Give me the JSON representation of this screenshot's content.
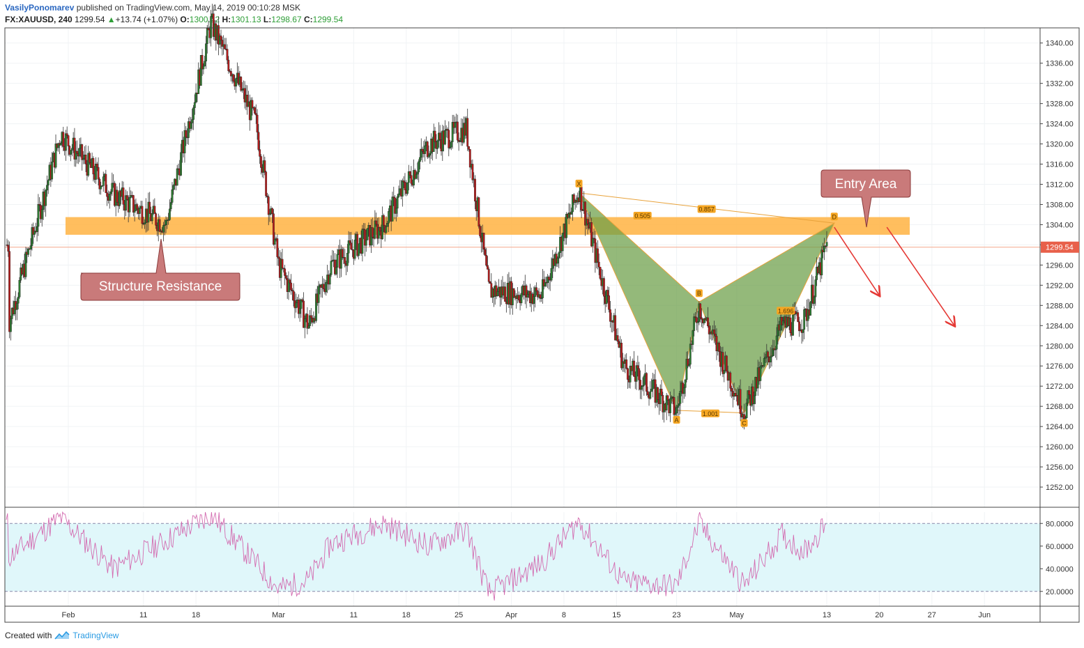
{
  "header": {
    "author": "VasilyPonomarev",
    "published_text": "published on TradingView.com, May 14, 2019 00:10:28 MSK",
    "symbol": "FX:XAUUSD, 240",
    "last": "1299.54",
    "change_arrow": "▲",
    "change": "+13.74 (+1.07%)",
    "open_label": "O:",
    "open": "1300.22",
    "high_label": "H:",
    "high": "1301.13",
    "low_label": "L:",
    "low": "1298.67",
    "close_label": "C:",
    "close": "1299.54"
  },
  "footer": {
    "created_with": "Created with",
    "brand": "TradingView",
    "logo_icon": "tradingview-logo-icon"
  },
  "colors": {
    "up": "#2e7d32",
    "down": "#b71c1c",
    "zone": "#ffb74d",
    "pattern": "#6b9e46",
    "rsi": "#d36bb0",
    "rsi_band": "#e0f7fa",
    "arrow": "#e53935",
    "label_box": "#c97a7a"
  },
  "chart_data": [
    {
      "type": "candlestick",
      "symbol": "FX:XAUUSD",
      "timeframe": "240",
      "ylim": [
        1248,
        1343
      ],
      "y_ticks": [
        "1340.00",
        "1336.00",
        "1332.00",
        "1328.00",
        "1324.00",
        "1320.00",
        "1316.00",
        "1312.00",
        "1308.00",
        "1304.00",
        "1300.00",
        "1296.00",
        "1292.00",
        "1288.00",
        "1284.00",
        "1280.00",
        "1276.00",
        "1272.00",
        "1268.00",
        "1264.00",
        "1260.00",
        "1256.00",
        "1252.00"
      ],
      "x_ticks": [
        "Feb",
        "11",
        "18",
        "Mar",
        "11",
        "18",
        "25",
        "Apr",
        "8",
        "15",
        "23",
        "May",
        "13",
        "20",
        "27",
        "Jun"
      ],
      "last_price_label": "1299.54",
      "anchors": [
        {
          "date": "2019-01-24",
          "price": 1284
        },
        {
          "date": "2019-01-31",
          "price": 1322
        },
        {
          "date": "2019-02-07",
          "price": 1310
        },
        {
          "date": "2019-02-14",
          "price": 1304
        },
        {
          "date": "2019-02-20",
          "price": 1344
        },
        {
          "date": "2019-02-26",
          "price": 1324
        },
        {
          "date": "2019-03-01",
          "price": 1296
        },
        {
          "date": "2019-03-05",
          "price": 1284
        },
        {
          "date": "2019-03-08",
          "price": 1296
        },
        {
          "date": "2019-03-15",
          "price": 1304
        },
        {
          "date": "2019-03-21",
          "price": 1320
        },
        {
          "date": "2019-03-26",
          "price": 1323
        },
        {
          "date": "2019-03-29",
          "price": 1291
        },
        {
          "date": "2019-04-05",
          "price": 1290
        },
        {
          "date": "2019-04-10",
          "price": 1311
        },
        {
          "date": "2019-04-16",
          "price": 1276
        },
        {
          "date": "2019-04-23",
          "price": 1267
        },
        {
          "date": "2019-04-26",
          "price": 1288
        },
        {
          "date": "2019-05-02",
          "price": 1267
        },
        {
          "date": "2019-05-07",
          "price": 1284
        },
        {
          "date": "2019-05-10",
          "price": 1285
        },
        {
          "date": "2019-05-13",
          "price": 1300
        }
      ],
      "resistance_zone": {
        "low": 1302,
        "high": 1305.5,
        "label": "Structure Resistance"
      },
      "entry_label": "Entry Area",
      "pattern": {
        "points": [
          {
            "name": "X",
            "date": "2019-04-10",
            "price": 1310.3
          },
          {
            "name": "A",
            "date": "2019-04-23",
            "price": 1267.2
          },
          {
            "name": "B",
            "date": "2019-04-26",
            "price": 1288.7
          },
          {
            "name": "C",
            "date": "2019-05-02",
            "price": 1266.7
          },
          {
            "name": "D",
            "date": "2019-05-14",
            "price": 1304.3
          }
        ],
        "ratios": [
          {
            "label": "0.505",
            "between": "XA-AB"
          },
          {
            "label": "1.001",
            "between": "A-C"
          },
          {
            "label": "1.696",
            "between": "BC-CD"
          },
          {
            "label": "0.857",
            "between": "X-D"
          }
        ]
      },
      "projection_arrows": [
        {
          "from": {
            "date": "2019-05-14",
            "price": 1303.5
          },
          "to": {
            "date": "2019-05-20",
            "price": 1290
          }
        },
        {
          "from": {
            "date": "2019-05-21",
            "price": 1303.5
          },
          "to": {
            "date": "2019-05-30",
            "price": 1284
          }
        }
      ]
    },
    {
      "type": "line",
      "name": "RSI",
      "ylim": [
        10,
        90
      ],
      "y_ticks": [
        "80.0000",
        "60.0000",
        "40.0000",
        "20.0000"
      ],
      "band": [
        20,
        80
      ],
      "values_sampled_by_anchor": [
        {
          "date": "2019-01-24",
          "value": 50
        },
        {
          "date": "2019-01-31",
          "value": 85
        },
        {
          "date": "2019-02-07",
          "value": 40
        },
        {
          "date": "2019-02-14",
          "value": 65
        },
        {
          "date": "2019-02-20",
          "value": 88
        },
        {
          "date": "2019-02-26",
          "value": 45
        },
        {
          "date": "2019-03-01",
          "value": 22
        },
        {
          "date": "2019-03-05",
          "value": 30
        },
        {
          "date": "2019-03-08",
          "value": 62
        },
        {
          "date": "2019-03-15",
          "value": 80
        },
        {
          "date": "2019-03-21",
          "value": 60
        },
        {
          "date": "2019-03-26",
          "value": 75
        },
        {
          "date": "2019-03-29",
          "value": 18
        },
        {
          "date": "2019-04-05",
          "value": 45
        },
        {
          "date": "2019-04-10",
          "value": 82
        },
        {
          "date": "2019-04-16",
          "value": 28
        },
        {
          "date": "2019-04-23",
          "value": 25
        },
        {
          "date": "2019-04-26",
          "value": 80
        },
        {
          "date": "2019-05-02",
          "value": 25
        },
        {
          "date": "2019-05-07",
          "value": 70
        },
        {
          "date": "2019-05-10",
          "value": 55
        },
        {
          "date": "2019-05-13",
          "value": 80
        }
      ]
    }
  ]
}
